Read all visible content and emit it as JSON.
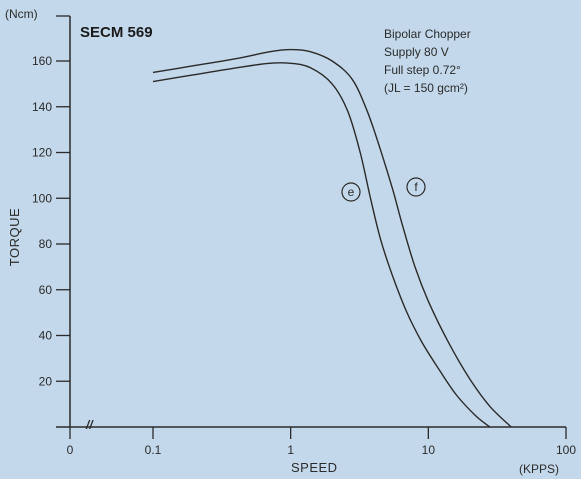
{
  "chart_data": {
    "type": "line",
    "model": "SECM 569",
    "notes": [
      "Bipolar Chopper",
      "Supply 80 V",
      "Full step 0.72°",
      "(JL = 150 gcm²)"
    ],
    "xlabel": "SPEED",
    "xunit": "(KPPS)",
    "ylabel": "TORQUE",
    "yunit": "(Ncm)",
    "x_scale": "log",
    "x_ticks": [
      "0",
      "0.1",
      "1",
      "10",
      "100"
    ],
    "y_ticks": [
      "20",
      "40",
      "60",
      "80",
      "100",
      "120",
      "140",
      "160"
    ],
    "xlim": [
      0.1,
      100
    ],
    "ylim": [
      0,
      175
    ],
    "grid": false,
    "axis_break": "//",
    "colors": {
      "background": "#c3d8ea",
      "curve": "#2a2a2a",
      "axis": "#2a2a2a"
    },
    "series": [
      {
        "name": "e",
        "x": [
          0.1,
          0.2,
          0.4,
          0.7,
          1.0,
          1.4,
          2.0,
          2.6,
          3.2,
          3.8,
          4.5,
          5.5,
          7.0,
          9.0,
          12.0,
          16.0,
          22.0,
          28.0
        ],
        "y": [
          151,
          154,
          157,
          159,
          159,
          157,
          150,
          138,
          120,
          100,
          82,
          66,
          50,
          37,
          25,
          14,
          5,
          0
        ]
      },
      {
        "name": "f",
        "x": [
          0.1,
          0.2,
          0.4,
          0.7,
          1.0,
          1.4,
          2.0,
          2.8,
          3.6,
          4.5,
          5.5,
          6.5,
          8.0,
          10.0,
          14.0,
          20.0,
          28.0,
          40.0
        ],
        "y": [
          155,
          158,
          161,
          164,
          165,
          164,
          160,
          152,
          138,
          121,
          104,
          88,
          70,
          55,
          37,
          21,
          9,
          0
        ]
      }
    ]
  }
}
